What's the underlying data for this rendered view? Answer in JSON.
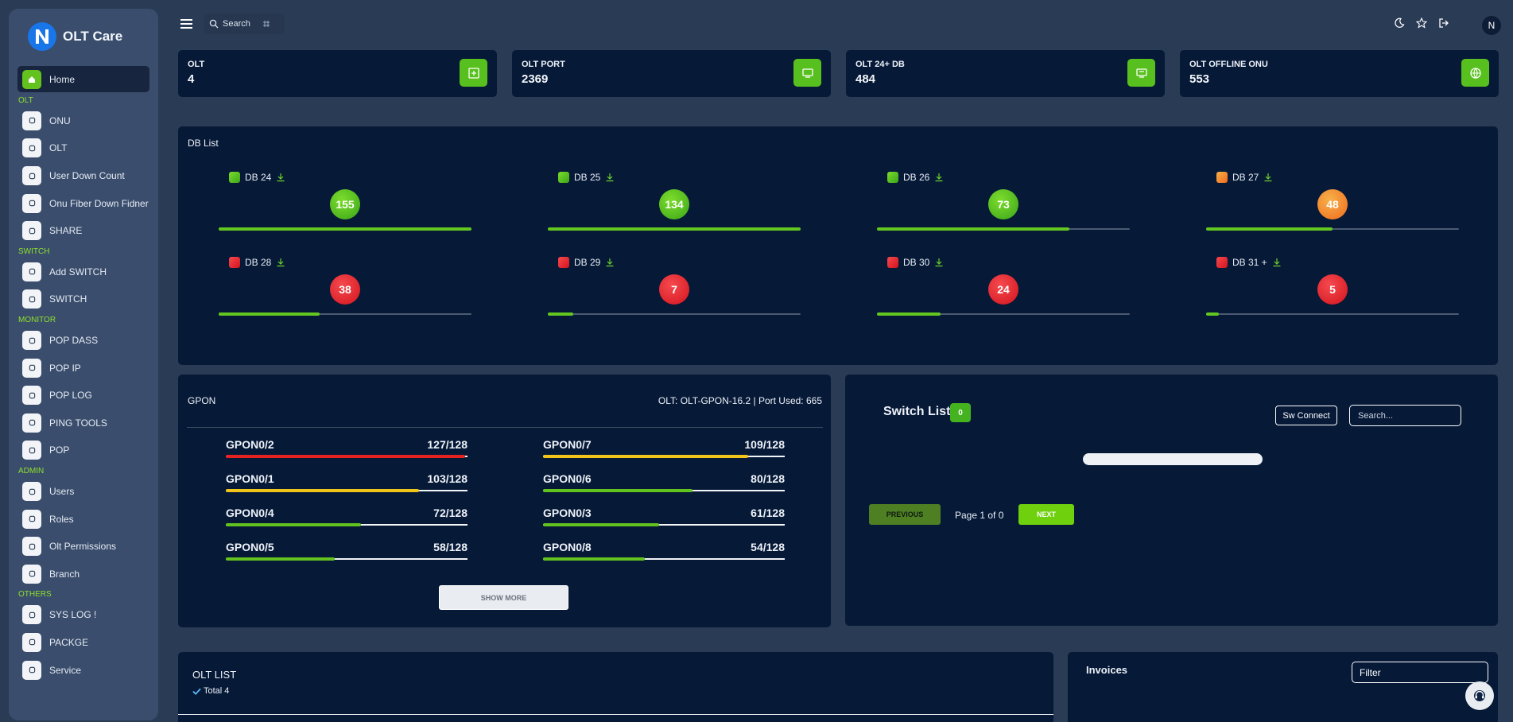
{
  "brand": {
    "name": "OLT Care"
  },
  "sidebar": {
    "home": "Home",
    "sections": [
      {
        "title": "OLT",
        "items": [
          {
            "label": "ONU",
            "icon": "onu-icon"
          },
          {
            "label": "OLT",
            "icon": "olt-icon"
          },
          {
            "label": "User Down Count",
            "icon": "user-down-icon"
          },
          {
            "label": "Onu Fiber Down Fidner",
            "icon": "fiber-icon"
          },
          {
            "label": "SHARE",
            "icon": "share-icon"
          }
        ]
      },
      {
        "title": "SWITCH",
        "items": [
          {
            "label": "Add SWITCH",
            "icon": "add-switch-icon"
          },
          {
            "label": "SWITCH",
            "icon": "switch-icon"
          }
        ]
      },
      {
        "title": "MONITOR",
        "items": [
          {
            "label": "POP DASS",
            "icon": "pop-dass-icon"
          },
          {
            "label": "POP IP",
            "icon": "pop-ip-icon"
          },
          {
            "label": "POP LOG",
            "icon": "pop-log-icon"
          },
          {
            "label": "PING TOOLS",
            "icon": "ping-icon"
          },
          {
            "label": "POP",
            "icon": "pop-icon"
          }
        ]
      },
      {
        "title": "ADMIN",
        "items": [
          {
            "label": "Users",
            "icon": "users-icon"
          },
          {
            "label": "Roles",
            "icon": "roles-icon"
          },
          {
            "label": "Olt Permissions",
            "icon": "permissions-icon"
          },
          {
            "label": "Branch",
            "icon": "branch-icon"
          }
        ]
      },
      {
        "title": "OTHERS",
        "items": [
          {
            "label": "SYS LOG !",
            "icon": "syslog-icon"
          },
          {
            "label": "PACKGE",
            "icon": "package-icon"
          },
          {
            "label": "Service",
            "icon": "service-icon"
          }
        ]
      }
    ]
  },
  "topbar": {
    "search_label": "Search",
    "avatar_initial": "N"
  },
  "stats": [
    {
      "label": "OLT",
      "value": "4"
    },
    {
      "label": "OLT PORT",
      "value": "2369"
    },
    {
      "label": "OLT 24+ DB",
      "value": "484"
    },
    {
      "label": "OLT OFFLINE ONU",
      "value": "553"
    }
  ],
  "db_list": {
    "title": "DB List",
    "items": [
      {
        "label": "DB 24",
        "count": "155",
        "status": "green",
        "fill": 1.0
      },
      {
        "label": "DB 25",
        "count": "134",
        "status": "green",
        "fill": 1.0
      },
      {
        "label": "DB 26",
        "count": "73",
        "status": "green",
        "fill": 0.76
      },
      {
        "label": "DB 27",
        "count": "48",
        "status": "orange",
        "fill": 0.5
      },
      {
        "label": "DB 28",
        "count": "38",
        "status": "red",
        "fill": 0.4
      },
      {
        "label": "DB 29",
        "count": "7",
        "status": "red",
        "fill": 0.1
      },
      {
        "label": "DB 30",
        "count": "24",
        "status": "red",
        "fill": 0.25
      },
      {
        "label": "DB 31 +",
        "count": "5",
        "status": "red",
        "fill": 0.05
      }
    ]
  },
  "gpon": {
    "title": "GPON",
    "info": "OLT: OLT-GPON-16.2 | Port Used: 665",
    "ports": [
      {
        "name": "GPON0/2",
        "value": "127/128",
        "fill": 0.99,
        "color": "#e5221f"
      },
      {
        "name": "GPON0/7",
        "value": "109/128",
        "fill": 0.85,
        "color": "#f0c419"
      },
      {
        "name": "GPON0/1",
        "value": "103/128",
        "fill": 0.8,
        "color": "#f0c419"
      },
      {
        "name": "GPON0/6",
        "value": "80/128",
        "fill": 0.62,
        "color": "#62c21e"
      },
      {
        "name": "GPON0/4",
        "value": "72/128",
        "fill": 0.56,
        "color": "#62c21e"
      },
      {
        "name": "GPON0/3",
        "value": "61/128",
        "fill": 0.48,
        "color": "#62c21e"
      },
      {
        "name": "GPON0/5",
        "value": "58/128",
        "fill": 0.45,
        "color": "#62c21e"
      },
      {
        "name": "GPON0/8",
        "value": "54/128",
        "fill": 0.42,
        "color": "#62c21e"
      }
    ],
    "show_more": "SHOW MORE"
  },
  "switch_list": {
    "title": "Switch List",
    "count": "0",
    "connect_label": "Sw Connect",
    "search_placeholder": "Search...",
    "prev_label": "PREVIOUS",
    "page_info": "Page 1 of 0",
    "next_label": "NEXT"
  },
  "olt_list": {
    "title": "OLT LIST",
    "total": "Total 4"
  },
  "invoices": {
    "title": "Invoices",
    "filter_label": "Filter"
  },
  "colors": {
    "green": "#58c01e",
    "orange": "#f29b2f",
    "red": "#e8282f",
    "panel": "#061937",
    "sidebar": "#3a4d6c"
  }
}
